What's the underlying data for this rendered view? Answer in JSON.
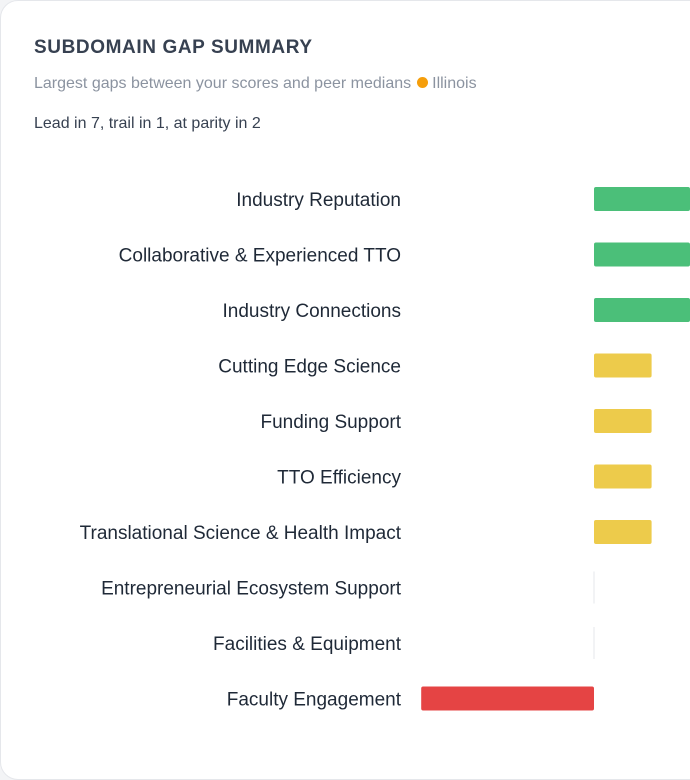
{
  "header": {
    "title": "SUBDOMAIN GAP SUMMARY",
    "subtitle": "Largest gaps between your scores and peer medians",
    "location": "Illinois",
    "summary": "Lead in 7, trail in 1, at parity in 2"
  },
  "colors": {
    "lead": "#4bbf79",
    "moderate": "#edcb4b",
    "trail": "#e54444",
    "parity": "#e5e7eb",
    "location_dot": "#f59e0b"
  },
  "chart_data": {
    "type": "bar",
    "orientation": "horizontal",
    "title": "SUBDOMAIN GAP SUMMARY",
    "xlabel": "",
    "ylabel": "",
    "categories": [
      "Industry Reputation",
      "Collaborative & Experienced TTO",
      "Industry Connections",
      "Cutting Edge Science",
      "Funding Support",
      "TTO Efficiency",
      "Translational Science & Health Impact",
      "Entrepreneurial Ecosystem Support",
      "Facilities & Equipment",
      "Faculty Engagement"
    ],
    "values": [
      1.0,
      1.0,
      1.0,
      0.6,
      0.6,
      0.6,
      0.6,
      0.0,
      0.0,
      -1.8
    ],
    "status": [
      "lead",
      "lead",
      "lead",
      "lead",
      "lead",
      "lead",
      "lead",
      "parity",
      "parity",
      "trail"
    ],
    "xlim": [
      -1.8,
      1.0
    ]
  }
}
